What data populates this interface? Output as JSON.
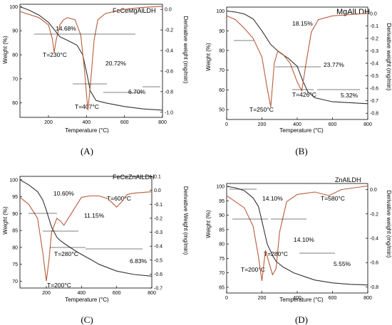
{
  "colors": {
    "weight": "#333333",
    "derivative": "#b85c3c",
    "axis": "#000000"
  },
  "chart_data": [
    {
      "type": "line",
      "panel": "(A)",
      "label": "FeCeMgAlLDH",
      "xlabel": "Temperature (°C)",
      "ylabel": "Weight (%)",
      "y2label": "Derivative weight (mg/min)",
      "xlim": [
        50,
        800
      ],
      "ylim": [
        54,
        101
      ],
      "y2lim": [
        -1.05,
        0.05
      ],
      "xticks": [
        200,
        400,
        600,
        800
      ],
      "yticks": [
        60,
        70,
        80,
        90,
        100
      ],
      "y2ticks": [
        0.0,
        -0.2,
        -0.4,
        -0.6,
        -0.8,
        -1.0
      ],
      "weight": {
        "x": [
          50,
          100,
          150,
          200,
          230,
          260,
          300,
          350,
          380,
          400,
          420,
          450,
          500,
          600,
          700,
          800
        ],
        "y": [
          100,
          98.5,
          96.5,
          93.5,
          90.5,
          87.5,
          86,
          84,
          80,
          73,
          65,
          61,
          60,
          58.5,
          57.5,
          57
        ]
      },
      "derivative": {
        "x": [
          50,
          100,
          150,
          200,
          220,
          230,
          240,
          260,
          280,
          300,
          340,
          370,
          390,
          407,
          420,
          440,
          460,
          500,
          600,
          700,
          800
        ],
        "y": [
          -0.02,
          -0.05,
          -0.08,
          -0.15,
          -0.28,
          -0.42,
          -0.3,
          -0.15,
          -0.1,
          -0.08,
          -0.1,
          -0.25,
          -0.6,
          -0.98,
          -0.75,
          -0.3,
          -0.1,
          -0.04,
          0.0,
          0.02,
          0.03
        ]
      },
      "annotations": [
        "14.68%",
        "T=230°C",
        "20.72%",
        "T=407°C",
        "6.70%"
      ]
    },
    {
      "type": "line",
      "panel": "(B)",
      "label": "MgAlLDH",
      "xlabel": "Temperature (°C)",
      "ylabel": "Weight (%)",
      "y2label": "Derivative weight (mg/min)",
      "xlim": [
        0,
        800
      ],
      "ylim": [
        45,
        102
      ],
      "y2lim": [
        -0.85,
        0.05
      ],
      "xticks": [
        0,
        200,
        400,
        600,
        800
      ],
      "yticks": [
        50,
        60,
        70,
        80,
        90,
        100
      ],
      "y2ticks": [
        0.0,
        -0.1,
        -0.2,
        -0.3,
        -0.4,
        -0.5,
        -0.6,
        -0.7,
        -0.8
      ],
      "weight": {
        "x": [
          0,
          50,
          100,
          150,
          200,
          250,
          300,
          350,
          400,
          430,
          460,
          500,
          600,
          700,
          800
        ],
        "y": [
          100,
          99.5,
          98.5,
          96,
          90,
          83,
          79,
          76,
          72,
          65,
          59,
          56,
          54,
          53.5,
          53
        ]
      },
      "derivative": {
        "x": [
          0,
          50,
          100,
          150,
          200,
          230,
          250,
          270,
          290,
          320,
          360,
          400,
          426,
          450,
          480,
          520,
          600,
          700,
          800
        ],
        "y": [
          -0.02,
          -0.05,
          -0.12,
          -0.2,
          -0.35,
          -0.6,
          -0.75,
          -0.4,
          -0.3,
          -0.33,
          -0.4,
          -0.55,
          -0.62,
          -0.4,
          -0.15,
          -0.05,
          -0.02,
          -0.01,
          0.0
        ]
      },
      "annotations": [
        "18.15%",
        "T=250°C",
        "23.77%",
        "T=426°C",
        "5.32%"
      ]
    },
    {
      "type": "line",
      "panel": "(C)",
      "label": "FeCeZnAlLDH",
      "xlabel": "Temperature (°C)",
      "ylabel": "Weight (%)",
      "y2label": "Derivative Weight (mg/min)",
      "xlim": [
        50,
        800
      ],
      "ylim": [
        68,
        101
      ],
      "y2lim": [
        -0.7,
        0.1
      ],
      "xticks": [
        200,
        400,
        600,
        800
      ],
      "yticks": [
        70,
        75,
        80,
        85,
        90,
        95,
        100
      ],
      "y2ticks": [
        0.1,
        0.0,
        -0.1,
        -0.2,
        -0.3,
        -0.4,
        -0.5,
        -0.6,
        -0.7
      ],
      "weight": {
        "x": [
          50,
          100,
          150,
          180,
          200,
          230,
          260,
          280,
          320,
          380,
          450,
          500,
          600,
          700,
          800
        ],
        "y": [
          100,
          98.5,
          96.5,
          94,
          91,
          86,
          83,
          82,
          80.5,
          78.5,
          76.5,
          75,
          73,
          72,
          71.5
        ]
      },
      "derivative": {
        "x": [
          50,
          100,
          150,
          180,
          200,
          215,
          230,
          260,
          280,
          300,
          350,
          400,
          450,
          500,
          550,
          600,
          630,
          660,
          700,
          800
        ],
        "y": [
          -0.05,
          -0.1,
          -0.2,
          -0.45,
          -0.65,
          -0.5,
          -0.3,
          -0.2,
          -0.22,
          -0.25,
          -0.15,
          -0.05,
          -0.04,
          -0.04,
          -0.06,
          -0.12,
          -0.08,
          -0.03,
          -0.02,
          -0.01
        ]
      },
      "annotations": [
        "10.60%",
        "T=600°C",
        "11.15%",
        "T=280°C",
        "T=200°C",
        "6.83%"
      ]
    },
    {
      "type": "line",
      "panel": "(D)",
      "label": "ZnAlLDH",
      "xlabel": "Temperature (°C)",
      "ylabel": "Weight (%)",
      "y2label": "Derivative weight (mg/min)",
      "xlim": [
        0,
        800
      ],
      "ylim": [
        63,
        101
      ],
      "y2lim": [
        -0.85,
        0.05
      ],
      "xticks": [
        0,
        200,
        400,
        600,
        800
      ],
      "yticks": [
        65,
        70,
        75,
        80,
        85,
        90,
        95,
        100
      ],
      "y2ticks": [
        0.0,
        -0.2,
        -0.4,
        -0.6,
        -0.8
      ],
      "weight": {
        "x": [
          0,
          50,
          100,
          150,
          180,
          200,
          230,
          260,
          280,
          320,
          380,
          450,
          500,
          600,
          700,
          800
        ],
        "y": [
          100,
          99.5,
          98.5,
          96,
          93,
          88,
          80,
          76,
          74,
          72,
          70,
          68.5,
          67.5,
          66.5,
          66,
          65.8
        ]
      },
      "derivative": {
        "x": [
          0,
          50,
          100,
          150,
          180,
          200,
          220,
          240,
          260,
          280,
          300,
          340,
          400,
          500,
          580,
          650,
          800
        ],
        "y": [
          -0.05,
          -0.1,
          -0.15,
          -0.3,
          -0.55,
          -0.75,
          -0.5,
          -0.6,
          -0.7,
          -0.65,
          -0.35,
          -0.1,
          -0.04,
          -0.02,
          -0.05,
          0.0,
          0.03
        ]
      },
      "annotations": [
        "14.10%",
        "T=580°C",
        "14.10%",
        "T=280°C",
        "T=200°C",
        "5.55%"
      ]
    }
  ]
}
